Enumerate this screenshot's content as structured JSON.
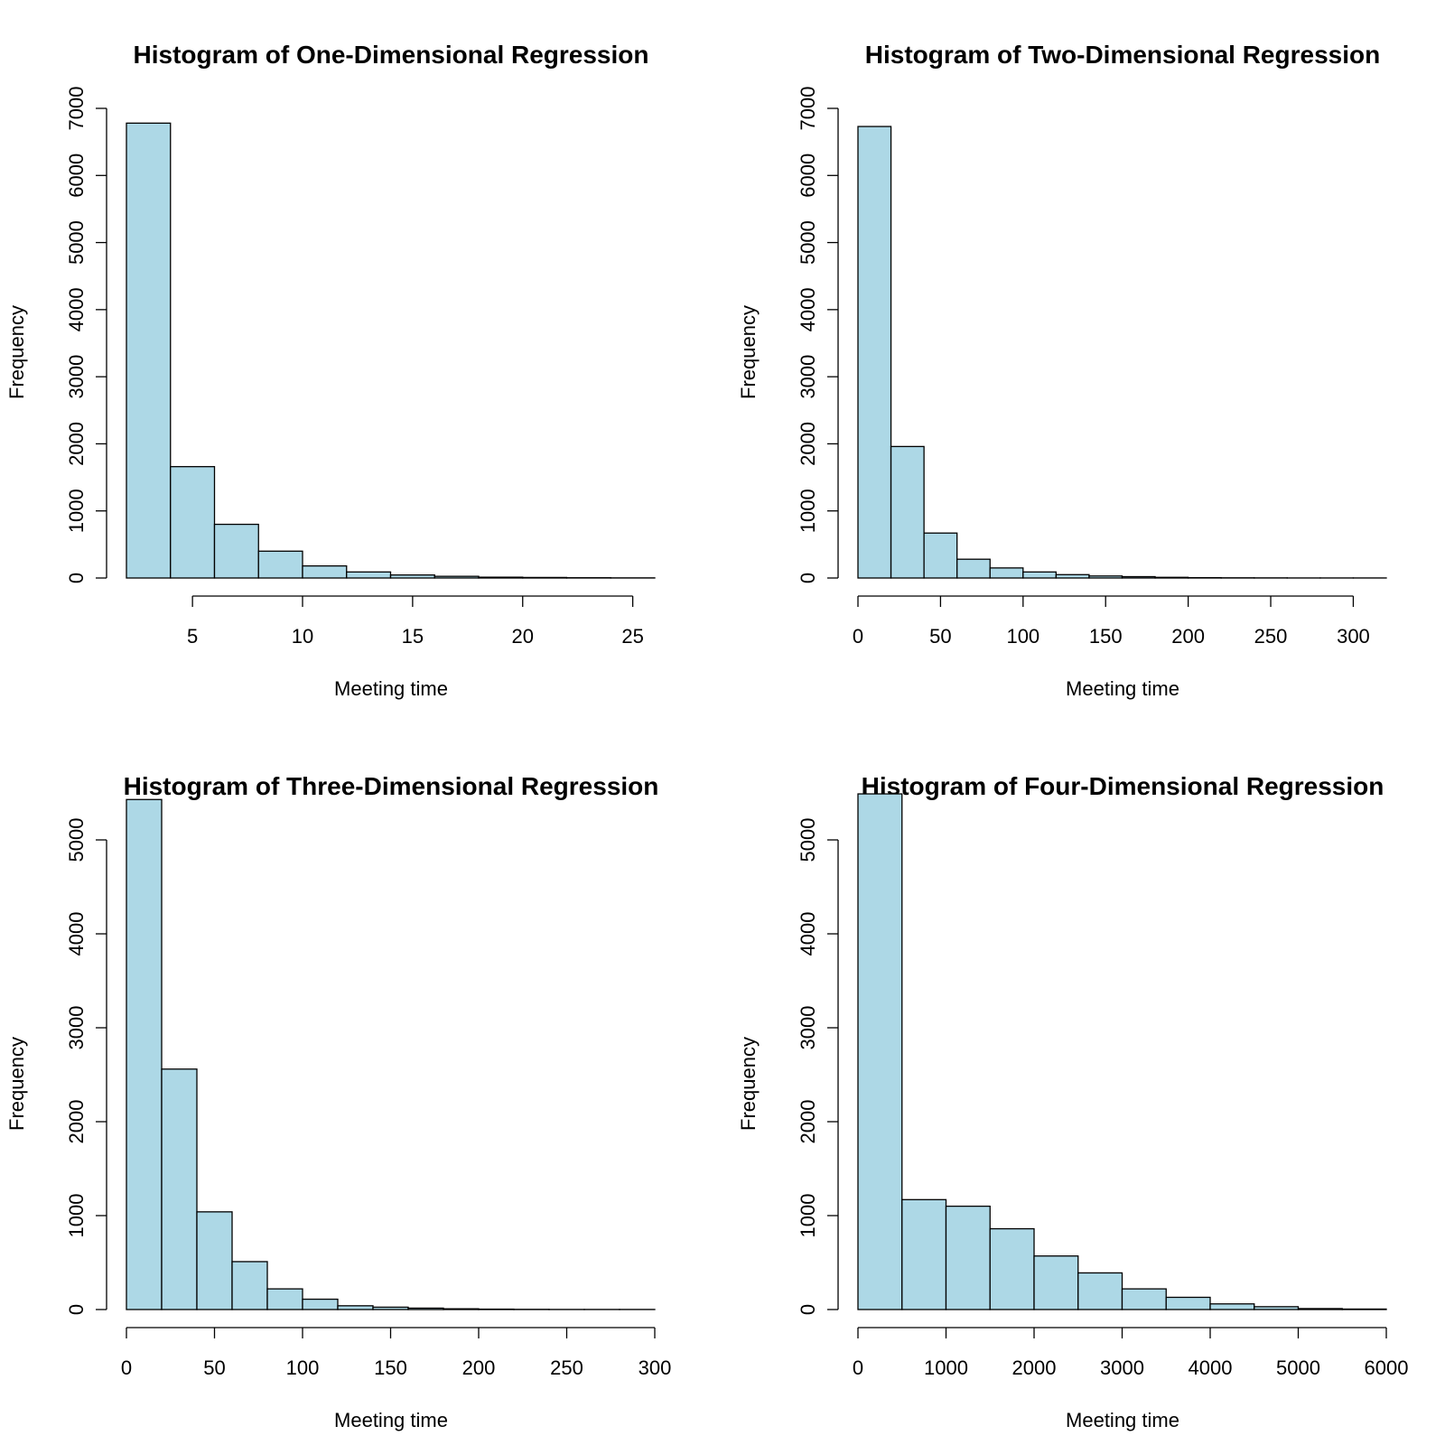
{
  "chart_data": [
    {
      "type": "bar",
      "title": "Histogram of One-Dimensional Regression",
      "xlabel": "Meeting time",
      "ylabel": "Frequency",
      "bin_edges": [
        2,
        4,
        6,
        8,
        10,
        12,
        14,
        16,
        18,
        20,
        22,
        24,
        26
      ],
      "values": [
        6780,
        1660,
        800,
        400,
        180,
        90,
        45,
        25,
        12,
        8,
        4,
        2
      ],
      "xlim": [
        2,
        26
      ],
      "ylim": [
        0,
        7000
      ],
      "xticks": [
        5,
        10,
        15,
        20,
        25
      ],
      "yticks": [
        0,
        1000,
        2000,
        3000,
        4000,
        5000,
        6000,
        7000
      ]
    },
    {
      "type": "bar",
      "title": "Histogram of Two-Dimensional Regression",
      "xlabel": "Meeting time",
      "ylabel": "Frequency",
      "bin_edges": [
        0,
        20,
        40,
        60,
        80,
        100,
        120,
        140,
        160,
        180,
        200,
        220,
        240,
        260,
        280,
        300,
        320
      ],
      "values": [
        6730,
        1960,
        670,
        280,
        150,
        90,
        50,
        30,
        20,
        10,
        5,
        3,
        2,
        1,
        1,
        1
      ],
      "xlim": [
        0,
        320
      ],
      "ylim": [
        0,
        7000
      ],
      "xticks": [
        0,
        50,
        100,
        150,
        200,
        250,
        300
      ],
      "yticks": [
        0,
        1000,
        2000,
        3000,
        4000,
        5000,
        6000,
        7000
      ]
    },
    {
      "type": "bar",
      "title": "Histogram of Three-Dimensional Regression",
      "xlabel": "Meeting time",
      "ylabel": "Frequency",
      "bin_edges": [
        0,
        20,
        40,
        60,
        80,
        100,
        120,
        140,
        160,
        180,
        200,
        220,
        240,
        260,
        280,
        300
      ],
      "values": [
        5430,
        2560,
        1040,
        510,
        220,
        110,
        40,
        25,
        15,
        8,
        4,
        2,
        1,
        1,
        1
      ],
      "xlim": [
        0,
        300
      ],
      "ylim": [
        0,
        5000
      ],
      "xticks": [
        0,
        50,
        100,
        150,
        200,
        250,
        300
      ],
      "yticks": [
        0,
        1000,
        2000,
        3000,
        4000,
        5000
      ]
    },
    {
      "type": "bar",
      "title": "Histogram of Four-Dimensional Regression",
      "xlabel": "Meeting time",
      "ylabel": "Frequency",
      "bin_edges": [
        0,
        500,
        1000,
        1500,
        2000,
        2500,
        3000,
        3500,
        4000,
        4500,
        5000,
        5500,
        6000
      ],
      "values": [
        5490,
        1170,
        1100,
        860,
        570,
        390,
        220,
        130,
        60,
        30,
        10,
        5
      ],
      "xlim": [
        0,
        6000
      ],
      "ylim": [
        0,
        5000
      ],
      "xticks": [
        0,
        1000,
        2000,
        3000,
        4000,
        5000,
        6000
      ],
      "yticks": [
        0,
        1000,
        2000,
        3000,
        4000,
        5000
      ]
    }
  ]
}
